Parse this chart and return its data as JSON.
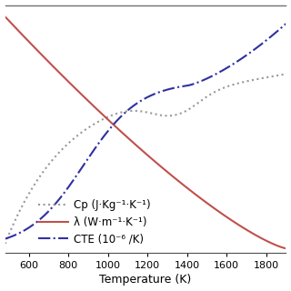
{
  "xlabel": "Temperature (K)",
  "x_min": 480,
  "x_max": 1900,
  "x_ticks": [
    600,
    800,
    1000,
    1200,
    1400,
    1600,
    1800
  ],
  "background_color": "#ffffff",
  "legend_labels": [
    "Cp (J·Kg⁻¹·K⁻¹)",
    "λ (W·m⁻¹·K⁻¹)",
    "CTE (10⁻⁶ /K)"
  ],
  "cp_color": "#999999",
  "lambda_color": "#c0504d",
  "cte_color": "#3030a0",
  "y_min": -0.02,
  "y_max": 1.05
}
